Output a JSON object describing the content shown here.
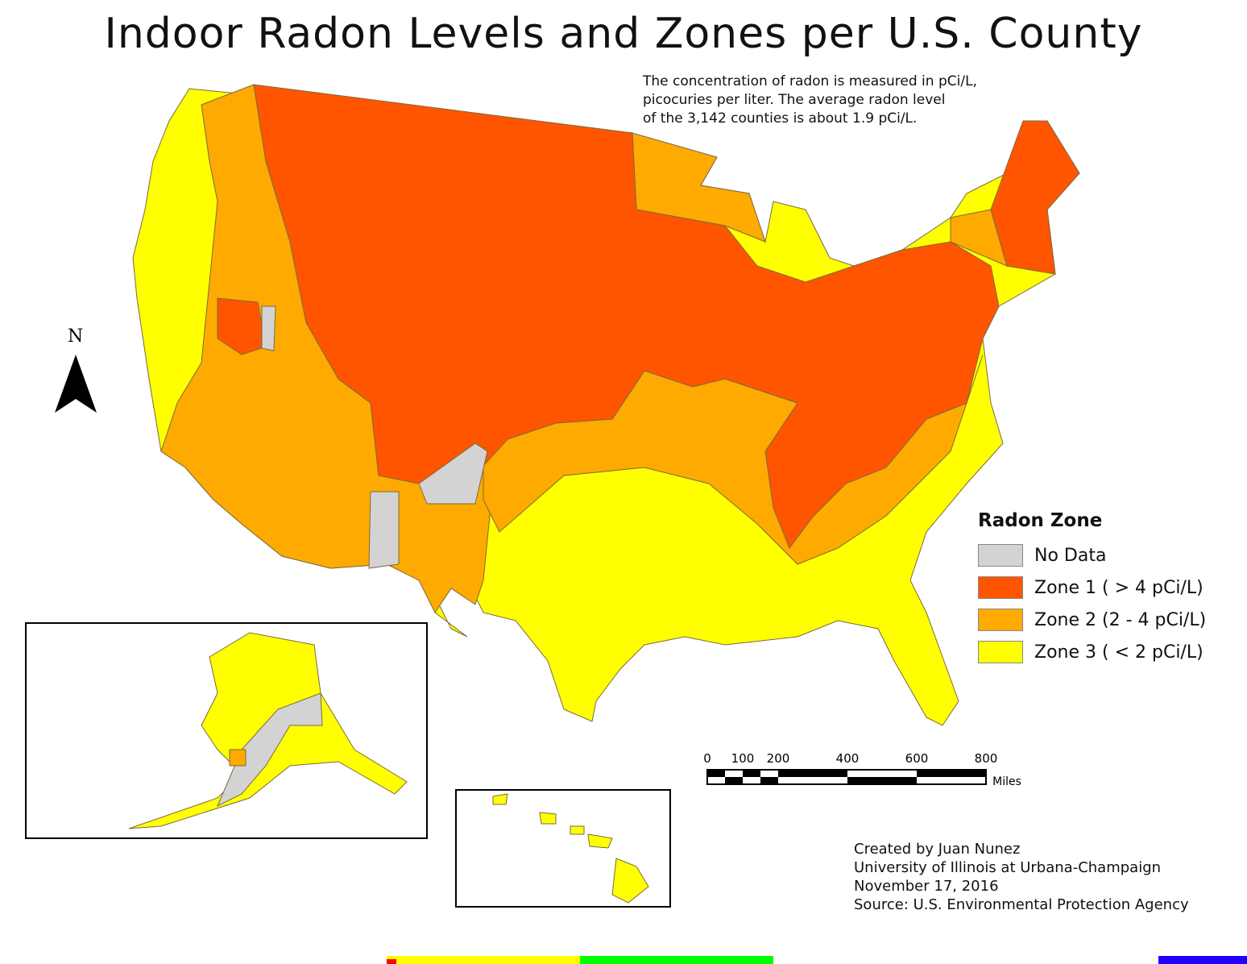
{
  "title": "Indoor Radon Levels and Zones per U.S. County",
  "note": [
    "The concentration of radon is measured in pCi/L,",
    "picocuries per liter. The average radon level",
    "of the 3,142 counties is about 1.9 pCi/L."
  ],
  "north_label": "N",
  "legend": {
    "title": "Radon Zone",
    "items": [
      {
        "label": "No Data",
        "color": "#d3d3d3"
      },
      {
        "label": "Zone 1 ( > 4 pCi/L)",
        "color": "#ff5500"
      },
      {
        "label": "Zone 2 (2 - 4 pCi/L)",
        "color": "#ffaa00"
      },
      {
        "label": "Zone 3 ( < 2 pCi/L)",
        "color": "#ffff00"
      }
    ]
  },
  "scale": {
    "ticks": [
      "0",
      "100",
      "200",
      "400",
      "600",
      "800"
    ],
    "unit": "Miles"
  },
  "credits": [
    "Created by Juan Nunez",
    "University of Illinois at Urbana-Champaign",
    "November 17, 2016",
    "Source: U.S. Environmental Protection Agency"
  ]
}
